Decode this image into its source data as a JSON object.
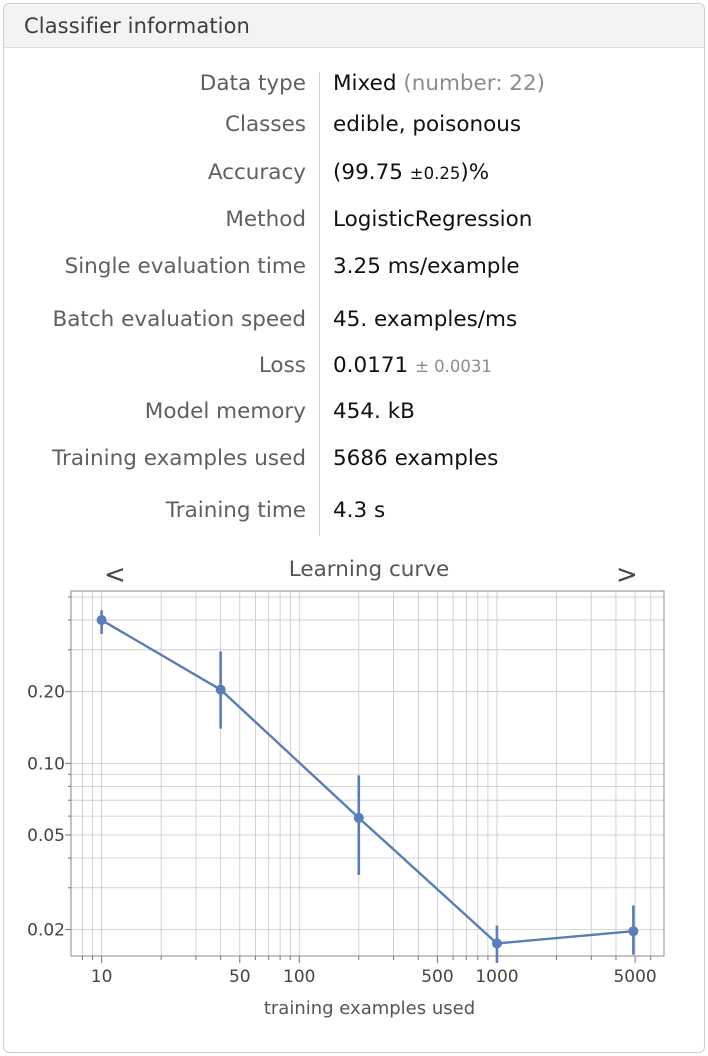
{
  "header": {
    "title": "Classifier information"
  },
  "info": {
    "data_type": {
      "label": "Data type",
      "value": "Mixed",
      "detail": "(number: 22)"
    },
    "classes": {
      "label": "Classes",
      "value": "edible, poisonous"
    },
    "accuracy": {
      "label": "Accuracy",
      "open": "(99.75",
      "pm": "±0.25",
      "close": ")%"
    },
    "method": {
      "label": "Method",
      "value": "LogisticRegression"
    },
    "single_eval": {
      "label": "Single evaluation time",
      "value": "3.25",
      "unit": "ms/example"
    },
    "batch_eval": {
      "label": "Batch evaluation speed",
      "value": "45.",
      "unit": "examples/ms"
    },
    "loss": {
      "label": "Loss",
      "value": "0.0171",
      "pm": "± 0.0031"
    },
    "memory": {
      "label": "Model memory",
      "value": "454.",
      "unit": "kB"
    },
    "training_examples": {
      "label": "Training examples used",
      "value": "5686",
      "unit": "examples"
    },
    "training_time": {
      "label": "Training time",
      "value": "4.3",
      "unit": "s"
    }
  },
  "learning_curve": {
    "title": "Learning curve",
    "prev_label": "<",
    "next_label": ">"
  },
  "colors": {
    "series": "#5b7db5",
    "value_text": "#7a6a58",
    "grid": "#c8c8c8"
  },
  "chart_data": {
    "type": "line",
    "title": "Learning curve",
    "xlabel": "training examples used",
    "ylabel": "",
    "x_scale": "log",
    "y_scale": "log",
    "xlim": [
      7,
      7000
    ],
    "ylim": [
      0.0155,
      0.53
    ],
    "grid": true,
    "x_ticks": [
      10,
      50,
      100,
      500,
      1000,
      5000
    ],
    "x_tick_labels": [
      "10",
      "50",
      "100",
      "500",
      "1000",
      "5000"
    ],
    "y_ticks": [
      0.02,
      0.05,
      0.1,
      0.2
    ],
    "y_tick_labels": [
      "0.02",
      "0.05",
      "0.10",
      "0.20"
    ],
    "series": [
      {
        "x": [
          10,
          40,
          200,
          1000,
          4900
        ],
        "y": [
          0.4,
          0.204,
          0.059,
          0.0175,
          0.0197
        ],
        "err_low": [
          0.35,
          0.14,
          0.034,
          0.0145,
          0.0157
        ],
        "err_high": [
          0.44,
          0.295,
          0.089,
          0.0208,
          0.0253
        ]
      }
    ]
  }
}
